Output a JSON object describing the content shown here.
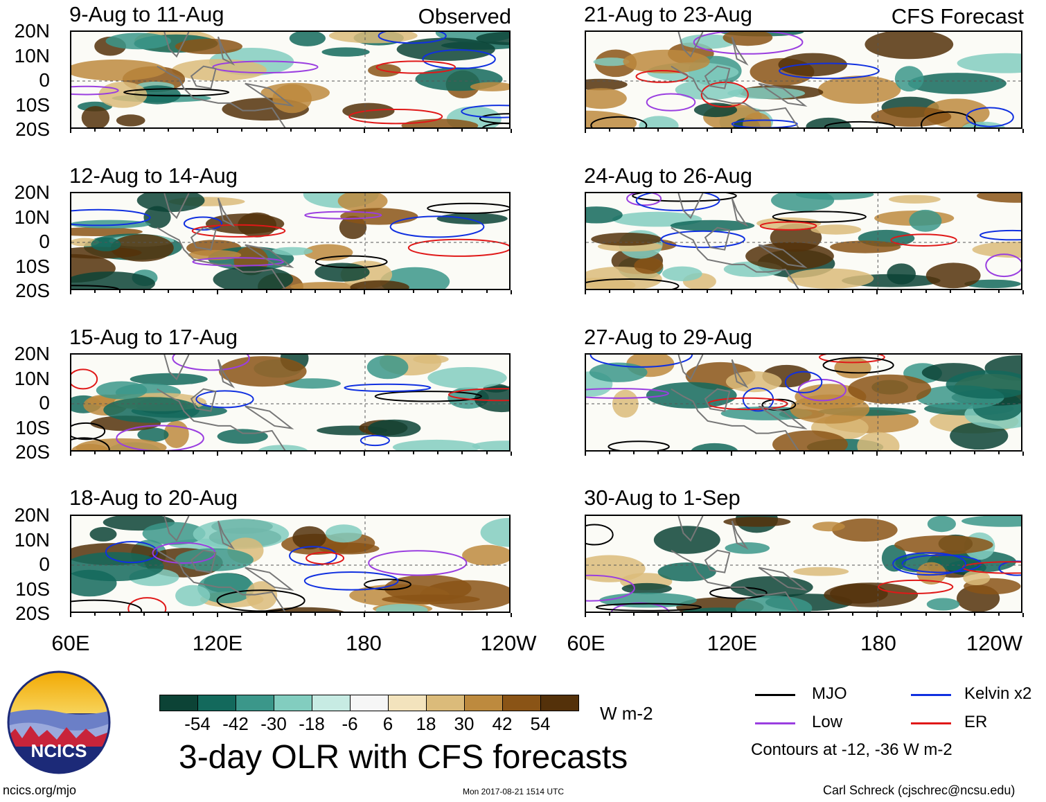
{
  "chart_data": {
    "type": "heatmap",
    "title": "3-day OLR with CFS forecasts",
    "units": "W m-2",
    "observed_label": "Observed",
    "forecast_label": "CFS Forecast",
    "y_tick_labels": [
      "20N",
      "10N",
      "0",
      "10S",
      "20S"
    ],
    "x_tick_labels": [
      "60E",
      "120E",
      "180",
      "120W"
    ],
    "lat_range": [
      -20,
      20
    ],
    "lon_range_degE": [
      60,
      240
    ],
    "panels": [
      {
        "title": "9-Aug to 11-Aug",
        "column": "observed"
      },
      {
        "title": "12-Aug to 14-Aug",
        "column": "observed"
      },
      {
        "title": "15-Aug to 17-Aug",
        "column": "observed"
      },
      {
        "title": "18-Aug to 20-Aug",
        "column": "observed"
      },
      {
        "title": "21-Aug to 23-Aug",
        "column": "forecast"
      },
      {
        "title": "24-Aug to 26-Aug",
        "column": "forecast"
      },
      {
        "title": "27-Aug to 29-Aug",
        "column": "forecast"
      },
      {
        "title": "30-Aug to 1-Sep",
        "column": "forecast"
      }
    ],
    "colorbar": {
      "labels": [
        "-54",
        "-42",
        "-30",
        "-18",
        "-6",
        "6",
        "18",
        "30",
        "42",
        "54"
      ],
      "colors": [
        "#0c4336",
        "#13695c",
        "#3b978a",
        "#82cdbf",
        "#c7ebe3",
        "#f6f6f6",
        "#f3e3bd",
        "#dbbb7a",
        "#bd8a3e",
        "#8a5416",
        "#54310a"
      ]
    },
    "contour_note": "Contours at -12, -36 W m-2",
    "legend": [
      {
        "label": "MJO",
        "color": "#000000"
      },
      {
        "label": "Kelvin x2",
        "color": "#1030e0"
      },
      {
        "label": "Low",
        "color": "#9a3ee0"
      },
      {
        "label": "ER",
        "color": "#e01818"
      }
    ]
  },
  "footer": {
    "logo_text": "NCICS",
    "site": "ncics.org/mjo",
    "timestamp": "Mon 2017-08-21 1514 UTC",
    "author": "Carl Schreck (cjschrec@ncsu.edu)"
  }
}
